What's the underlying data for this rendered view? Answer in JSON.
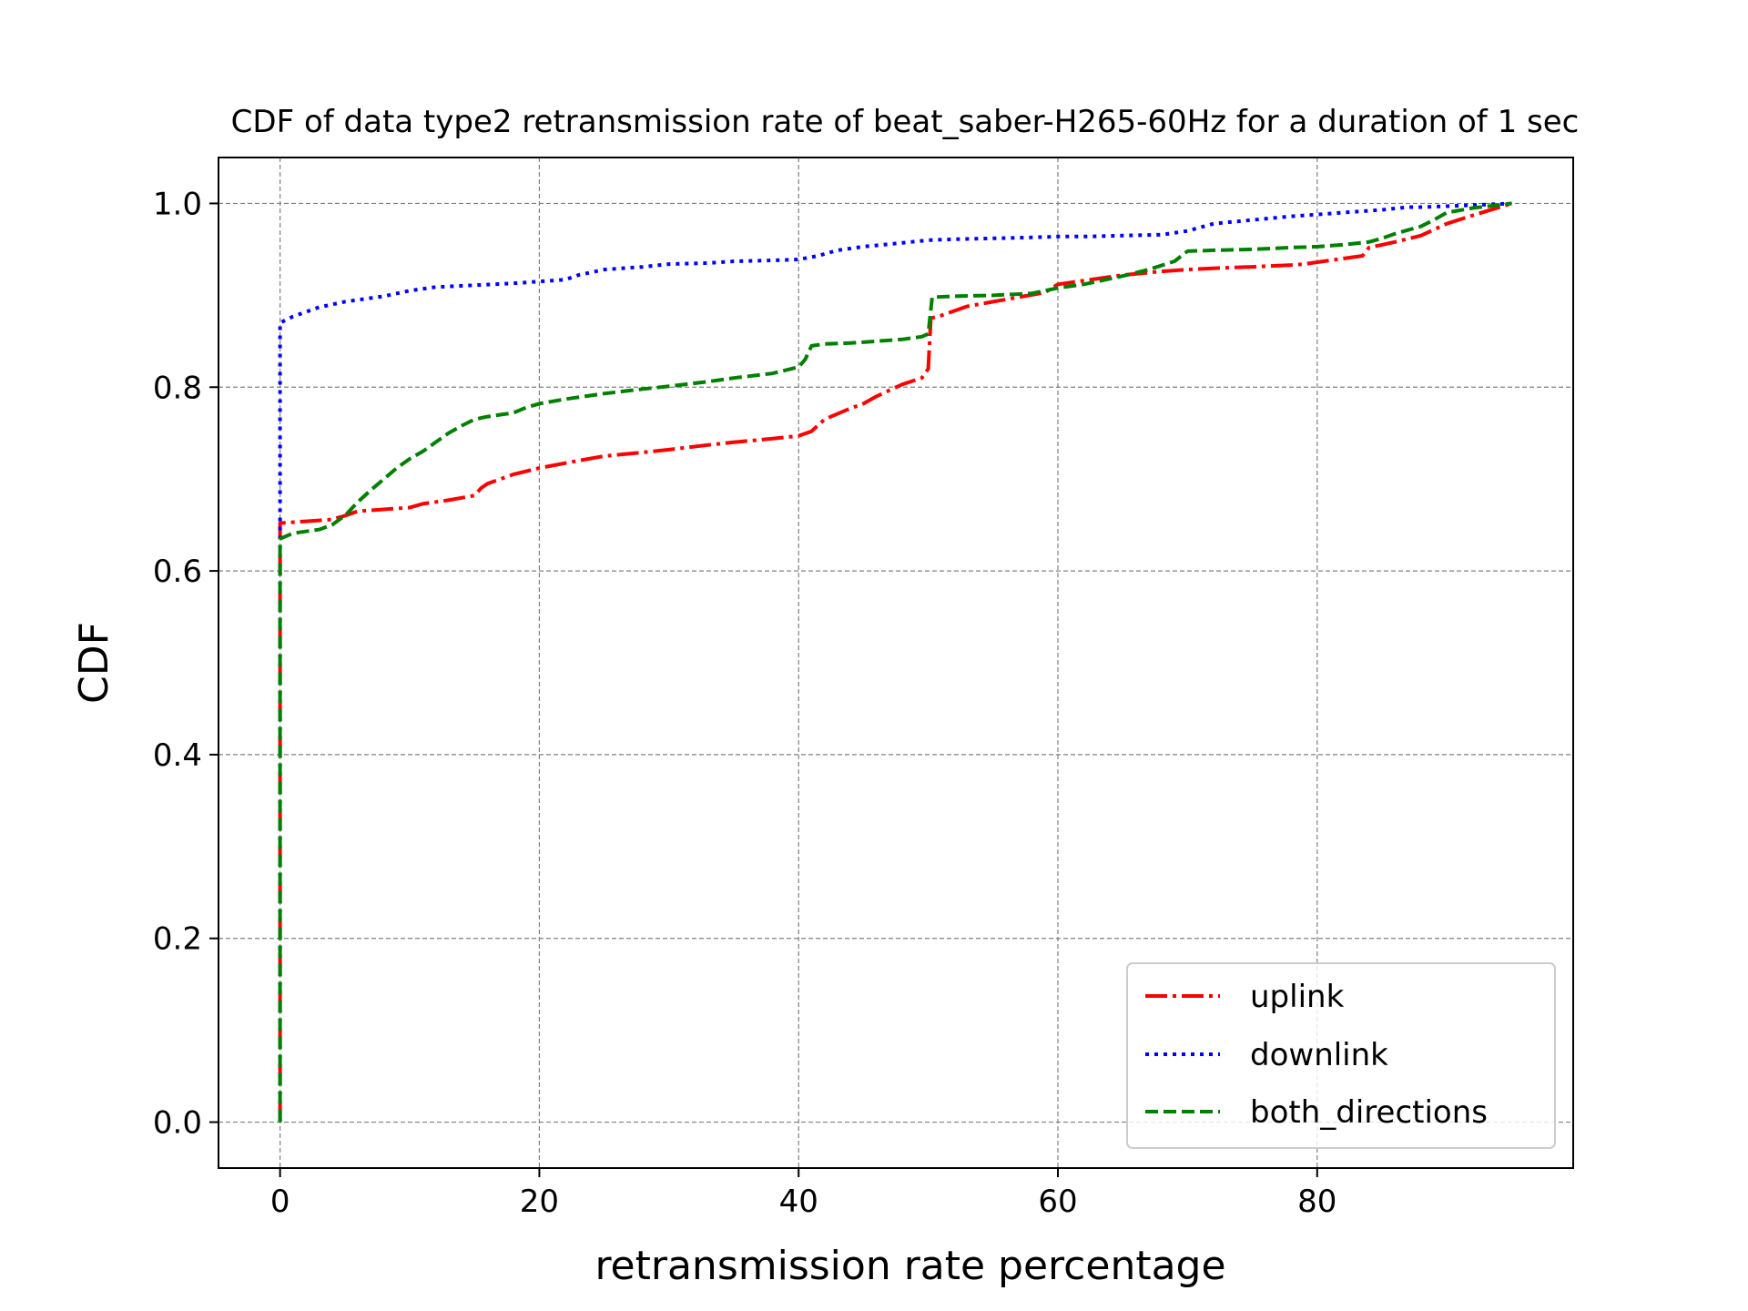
{
  "chart_data": {
    "type": "line",
    "title": "CDF of data type2 retransmission rate of beat_saber-H265-60Hz for a duration of 1 sec",
    "xlabel": "retransmission rate percentage",
    "ylabel": "CDF",
    "xlim": [
      -4.75,
      99.75
    ],
    "ylim": [
      -0.05,
      1.05
    ],
    "xticks": [
      0,
      20,
      40,
      60,
      80
    ],
    "xtick_labels": [
      "0",
      "20",
      "40",
      "60",
      "80"
    ],
    "yticks": [
      0.0,
      0.2,
      0.4,
      0.6,
      0.8,
      1.0
    ],
    "ytick_labels": [
      "0.0",
      "0.2",
      "0.4",
      "0.6",
      "0.8",
      "1.0"
    ],
    "grid": true,
    "legend_position": "lower-right",
    "series": [
      {
        "name": "uplink",
        "color": "#ff0000",
        "dash": "dashdot",
        "x": [
          0,
          0,
          0,
          1,
          2,
          3,
          4,
          5,
          6,
          8,
          10,
          11,
          13,
          15,
          15.5,
          16,
          18,
          20,
          23,
          25,
          28,
          30,
          33,
          35,
          38,
          40,
          41,
          42,
          44,
          45,
          46,
          48,
          49.5,
          50,
          50.2,
          51,
          53,
          55,
          57,
          59,
          60,
          62,
          65,
          68,
          70,
          73,
          75,
          78,
          79,
          80,
          82,
          83.5,
          84,
          85,
          86,
          88,
          90,
          92,
          95
        ],
        "y": [
          0.0,
          0.63,
          0.652,
          0.653,
          0.654,
          0.655,
          0.656,
          0.66,
          0.665,
          0.667,
          0.669,
          0.673,
          0.677,
          0.682,
          0.69,
          0.695,
          0.705,
          0.712,
          0.72,
          0.725,
          0.729,
          0.732,
          0.737,
          0.74,
          0.744,
          0.747,
          0.752,
          0.765,
          0.777,
          0.782,
          0.79,
          0.803,
          0.81,
          0.82,
          0.875,
          0.878,
          0.888,
          0.893,
          0.898,
          0.903,
          0.912,
          0.916,
          0.922,
          0.926,
          0.928,
          0.93,
          0.931,
          0.933,
          0.934,
          0.936,
          0.94,
          0.943,
          0.952,
          0.955,
          0.958,
          0.965,
          0.978,
          0.987,
          1.0
        ]
      },
      {
        "name": "downlink",
        "color": "#0000ff",
        "dash": "dotted",
        "x": [
          0,
          0,
          0,
          1,
          3,
          5,
          8,
          10,
          12,
          15,
          18,
          20,
          22,
          23,
          25,
          28,
          30,
          33,
          35,
          38,
          40,
          41.5,
          43,
          44,
          45,
          48,
          50,
          52,
          55,
          58,
          60,
          62,
          65,
          68,
          70,
          72,
          75,
          78,
          80,
          82,
          85,
          87,
          88,
          90,
          95
        ],
        "y": [
          0.0,
          0.64,
          0.87,
          0.877,
          0.887,
          0.893,
          0.899,
          0.905,
          0.909,
          0.911,
          0.913,
          0.915,
          0.917,
          0.922,
          0.928,
          0.931,
          0.934,
          0.935,
          0.937,
          0.938,
          0.939,
          0.943,
          0.949,
          0.951,
          0.953,
          0.957,
          0.96,
          0.961,
          0.962,
          0.963,
          0.964,
          0.964,
          0.965,
          0.966,
          0.97,
          0.978,
          0.982,
          0.986,
          0.988,
          0.99,
          0.993,
          0.996,
          0.996,
          0.997,
          1.0
        ]
      },
      {
        "name": "both_directions",
        "color": "#008000",
        "dash": "dashed",
        "x": [
          0,
          0,
          0.5,
          1,
          2,
          3,
          4,
          5,
          6,
          7,
          8,
          9,
          10,
          11,
          12,
          13,
          14,
          15,
          16,
          17,
          18,
          19,
          20,
          22,
          25,
          28,
          30,
          33,
          35,
          38,
          40,
          40.5,
          41,
          42,
          44,
          46,
          48,
          49.5,
          50,
          50.3,
          52,
          55,
          58,
          60,
          62,
          65,
          67,
          69,
          70,
          72,
          75,
          78,
          80,
          82,
          84,
          85,
          86,
          87,
          88,
          89,
          90,
          92,
          95
        ],
        "y": [
          0.0,
          0.635,
          0.638,
          0.641,
          0.643,
          0.645,
          0.65,
          0.66,
          0.675,
          0.688,
          0.7,
          0.712,
          0.722,
          0.73,
          0.74,
          0.75,
          0.758,
          0.765,
          0.768,
          0.77,
          0.772,
          0.778,
          0.782,
          0.787,
          0.793,
          0.798,
          0.801,
          0.806,
          0.81,
          0.815,
          0.822,
          0.83,
          0.845,
          0.847,
          0.848,
          0.85,
          0.852,
          0.855,
          0.858,
          0.898,
          0.899,
          0.9,
          0.902,
          0.908,
          0.912,
          0.921,
          0.928,
          0.937,
          0.948,
          0.949,
          0.95,
          0.952,
          0.953,
          0.955,
          0.958,
          0.962,
          0.967,
          0.971,
          0.975,
          0.982,
          0.99,
          0.995,
          1.0
        ]
      }
    ]
  }
}
